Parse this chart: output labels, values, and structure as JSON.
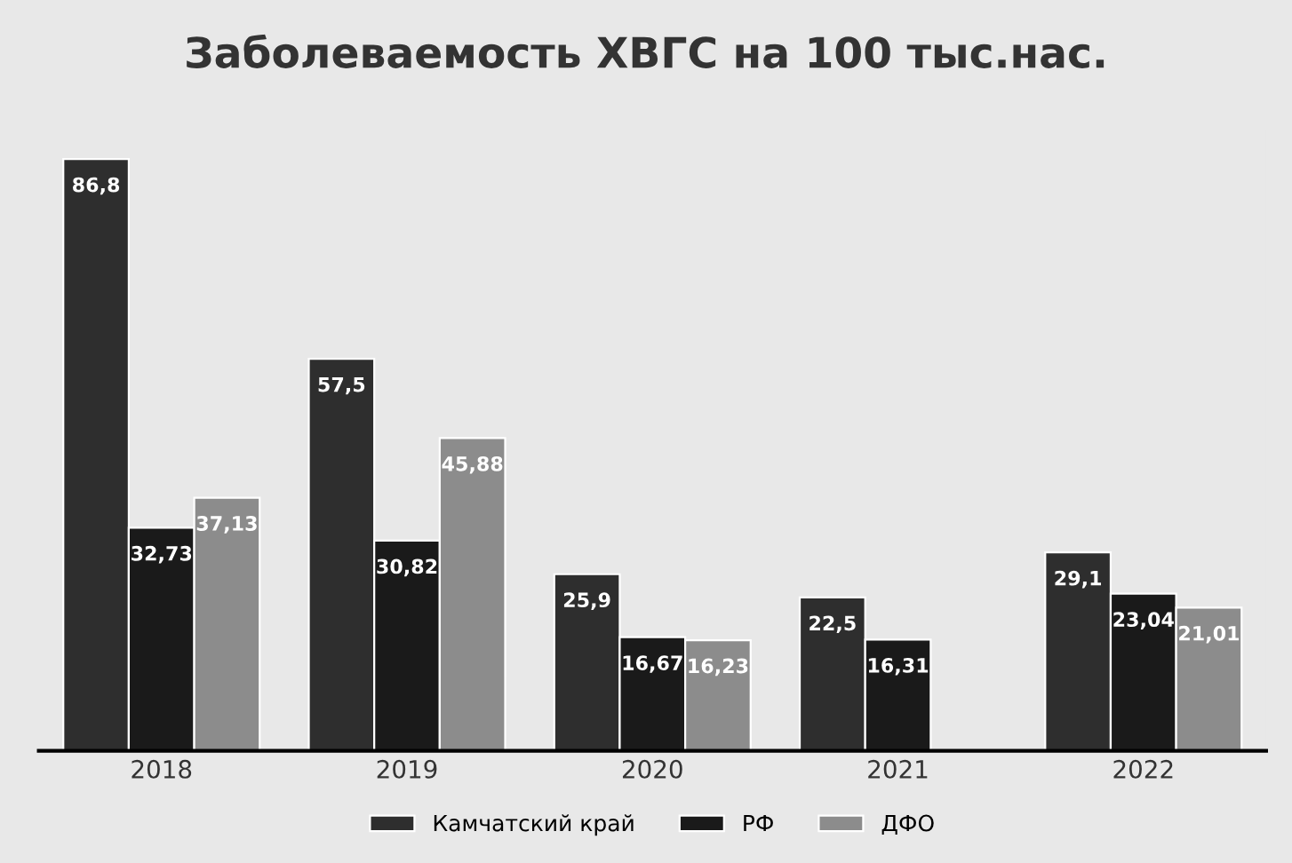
{
  "chart_data": {
    "type": "bar",
    "title": "Заболеваемость ХВГС на 100 тыс.нас.",
    "categories": [
      "2018",
      "2019",
      "2020",
      "2021",
      "2022"
    ],
    "series": [
      {
        "name": "Камчатский край",
        "color": "#2e2e2e",
        "values": [
          86.8,
          57.5,
          25.9,
          22.5,
          29.1
        ],
        "value_labels": [
          "86,8",
          "57,5",
          "25,9",
          "22,5",
          "29,1"
        ]
      },
      {
        "name": "РФ",
        "color": "#1a1a1a",
        "values": [
          32.73,
          30.82,
          16.67,
          16.31,
          23.04
        ],
        "value_labels": [
          "32,73",
          "30,82",
          "16,67",
          "16,31",
          "23,04"
        ]
      },
      {
        "name": "ДФО",
        "color": "#8c8c8c",
        "values": [
          37.13,
          45.88,
          16.23,
          null,
          21.01
        ],
        "value_labels": [
          "37,13",
          "45,88",
          "16,23",
          null,
          "21,01"
        ]
      }
    ],
    "legend": "bottom",
    "tick_labels": "x"
  }
}
